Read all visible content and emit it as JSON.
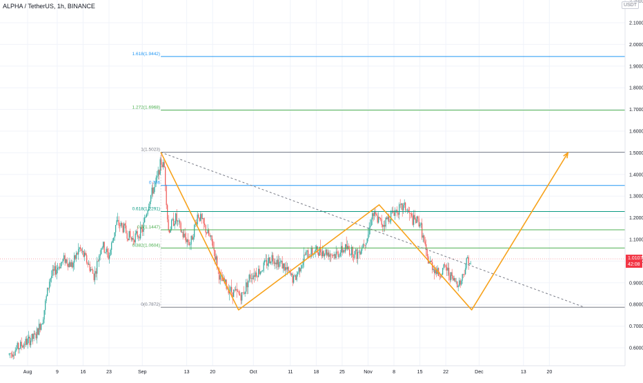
{
  "chart_data": {
    "type": "candlestick",
    "title": "ALPHA / TetherUS, 1h, BINANCE",
    "y_axis": {
      "min": 0.52,
      "max": 2.18,
      "tick_labels": [
        "2.1000",
        "2.0000",
        "1.9000",
        "1.8000",
        "1.7000",
        "1.6000",
        "1.5000",
        "1.4000",
        "1.3000",
        "1.2000",
        "1.1000",
        "1.0000",
        "0.9000",
        "0.8000",
        "0.7000",
        "0.6000"
      ],
      "currency_label": "USDT",
      "top_cut_label": "2.2000"
    },
    "x_axis": {
      "tick_labels": [
        {
          "label": "Aug",
          "date": "2021-08-01"
        },
        {
          "label": "9",
          "date": "2021-08-09"
        },
        {
          "label": "16",
          "date": "2021-08-16"
        },
        {
          "label": "23",
          "date": "2021-08-23"
        },
        {
          "label": "Sep",
          "date": "2021-09-01"
        },
        {
          "label": "13",
          "date": "2021-09-13"
        },
        {
          "label": "20",
          "date": "2021-09-20"
        },
        {
          "label": "Oct",
          "date": "2021-10-01"
        },
        {
          "label": "11",
          "date": "2021-10-11"
        },
        {
          "label": "18",
          "date": "2021-10-18"
        },
        {
          "label": "25",
          "date": "2021-10-25"
        },
        {
          "label": "Nov",
          "date": "2021-11-01"
        },
        {
          "label": "8",
          "date": "2021-11-08"
        },
        {
          "label": "15",
          "date": "2021-11-15"
        },
        {
          "label": "22",
          "date": "2021-11-22"
        },
        {
          "label": "Dec",
          "date": "2021-12-01"
        },
        {
          "label": "13",
          "date": "2021-12-13"
        },
        {
          "label": "20",
          "date": "2021-12-20"
        }
      ]
    },
    "price_anchors": [
      [
        "2021-07-27",
        0.57
      ],
      [
        "2021-07-31",
        0.62
      ],
      [
        "2021-08-03",
        0.65
      ],
      [
        "2021-08-05",
        0.73
      ],
      [
        "2021-08-07",
        0.92
      ],
      [
        "2021-08-09",
        0.97
      ],
      [
        "2021-08-11",
        1.01
      ],
      [
        "2021-08-13",
        0.98
      ],
      [
        "2021-08-15",
        1.06
      ],
      [
        "2021-08-17",
        1.0
      ],
      [
        "2021-08-19",
        0.93
      ],
      [
        "2021-08-21",
        1.08
      ],
      [
        "2021-08-23",
        1.02
      ],
      [
        "2021-08-25",
        1.18
      ],
      [
        "2021-08-27",
        1.15
      ],
      [
        "2021-08-29",
        1.1
      ],
      [
        "2021-09-01",
        1.14
      ],
      [
        "2021-09-03",
        1.29
      ],
      [
        "2021-09-05",
        1.38
      ],
      [
        "2021-09-06",
        1.46
      ],
      [
        "2021-09-07",
        1.43
      ],
      [
        "2021-09-08",
        1.14
      ],
      [
        "2021-09-10",
        1.2
      ],
      [
        "2021-09-12",
        1.12
      ],
      [
        "2021-09-14",
        1.08
      ],
      [
        "2021-09-16",
        1.22
      ],
      [
        "2021-09-18",
        1.15
      ],
      [
        "2021-09-20",
        1.08
      ],
      [
        "2021-09-22",
        0.92
      ],
      [
        "2021-09-25",
        0.86
      ],
      [
        "2021-09-28",
        0.84
      ],
      [
        "2021-09-30",
        0.93
      ],
      [
        "2021-10-03",
        0.96
      ],
      [
        "2021-10-06",
        1.02
      ],
      [
        "2021-10-09",
        0.98
      ],
      [
        "2021-10-12",
        0.91
      ],
      [
        "2021-10-15",
        1.03
      ],
      [
        "2021-10-19",
        1.05
      ],
      [
        "2021-10-23",
        1.03
      ],
      [
        "2021-10-26",
        1.06
      ],
      [
        "2021-10-29",
        1.03
      ],
      [
        "2021-11-01",
        1.12
      ],
      [
        "2021-11-02",
        1.22
      ],
      [
        "2021-11-05",
        1.17
      ],
      [
        "2021-11-08",
        1.23
      ],
      [
        "2021-11-11",
        1.25
      ],
      [
        "2021-11-13",
        1.19
      ],
      [
        "2021-11-15",
        1.18
      ],
      [
        "2021-11-17",
        1.01
      ],
      [
        "2021-11-20",
        0.94
      ],
      [
        "2021-11-22",
        0.97
      ],
      [
        "2021-11-24",
        0.91
      ],
      [
        "2021-11-26",
        0.9
      ],
      [
        "2021-11-28",
        1.02
      ],
      [
        "2021-11-29",
        0.96
      ]
    ],
    "fib_retracement": {
      "color": "#787b86",
      "levels": [
        {
          "ratio": "1.618",
          "price": "1.9442",
          "label": "1.618(1.9442)",
          "color": "#2196f3",
          "y": 1.9442
        },
        {
          "ratio": "1.272",
          "price": "1.6968",
          "label": "1.272(1.6968)",
          "color": "#4caf50",
          "y": 1.6968
        },
        {
          "ratio": "1",
          "price": "1.5023",
          "label": "1(1.5023)",
          "color": "#787b86",
          "y": 1.5023
        },
        {
          "ratio": "0.786",
          "price": "",
          "label": "0.786",
          "color": "#2196f3",
          "y": 1.3494
        },
        {
          "ratio": "0.618",
          "price": "1.2291",
          "label": "0.618(1.2291)",
          "color": "#089981",
          "y": 1.2291
        },
        {
          "ratio": "0.5",
          "price": "1.1447",
          "label": "0.5(1.1447)",
          "color": "#4caf50",
          "y": 1.1447
        },
        {
          "ratio": "0.382",
          "price": "1.0604",
          "label": "0.382(1.0604)",
          "color": "#4caf50",
          "y": 1.0604
        },
        {
          "ratio": "0",
          "price": "0.7872",
          "label": "0(0.7872)",
          "color": "#787b86",
          "y": 0.7872
        }
      ]
    },
    "pattern_path": {
      "color": "#f7a21b",
      "points": [
        [
          "2021-09-06",
          1.5023
        ],
        [
          "2021-09-27",
          0.775
        ],
        [
          "2021-11-04",
          1.26
        ],
        [
          "2021-11-29",
          0.775
        ],
        [
          "2021-12-25",
          1.5
        ]
      ]
    },
    "trendline": {
      "color": "#787b86",
      "style": "dashed",
      "points": [
        [
          "2021-09-06",
          1.5023
        ],
        [
          "2021-12-29",
          0.79
        ]
      ]
    },
    "current_price": {
      "value": "1.0107",
      "countdown": "42:08",
      "color": "#f23645",
      "y": 1.0107
    },
    "colors": {
      "up": "#26a69a",
      "down": "#ef5350",
      "grid": "#f0f3fa"
    }
  }
}
